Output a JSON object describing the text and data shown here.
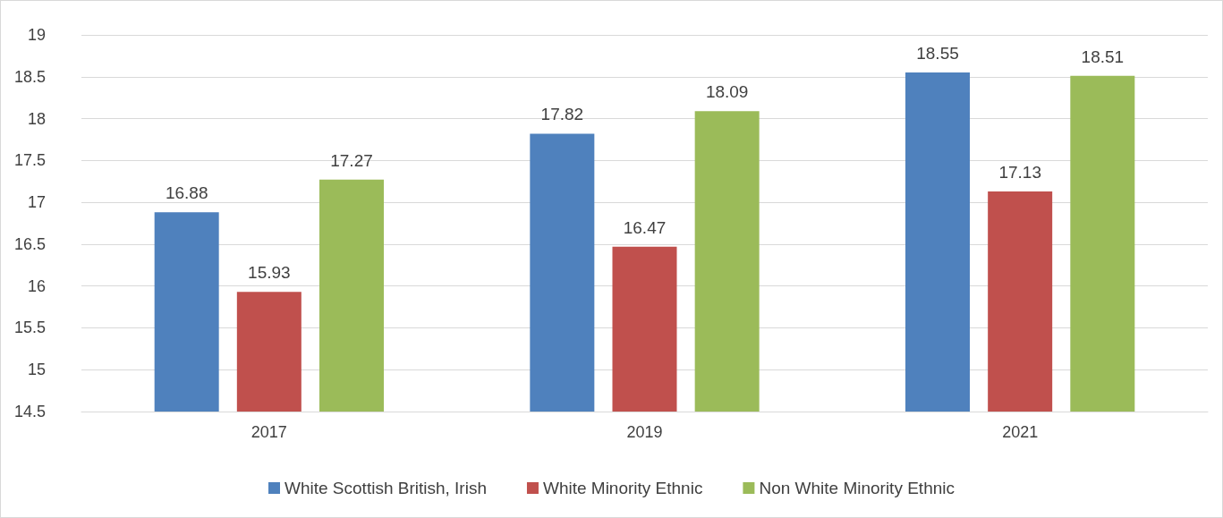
{
  "chart_data": {
    "type": "bar",
    "categories": [
      "2017",
      "2019",
      "2021"
    ],
    "series": [
      {
        "name": "White Scottish British, Irish",
        "color": "#4f81bd",
        "values": [
          16.88,
          17.82,
          18.55
        ]
      },
      {
        "name": "White Minority Ethnic",
        "color": "#c0504d",
        "values": [
          15.93,
          16.47,
          17.13
        ]
      },
      {
        "name": "Non White Minority Ethnic",
        "color": "#9bbb59",
        "values": [
          17.27,
          18.09,
          18.51
        ]
      }
    ],
    "ylim": [
      14.5,
      19
    ],
    "yticks": [
      14.5,
      15,
      15.5,
      16,
      16.5,
      17,
      17.5,
      18,
      18.5,
      19
    ],
    "grid": "y",
    "legend": "bottom",
    "data_labels": true
  }
}
